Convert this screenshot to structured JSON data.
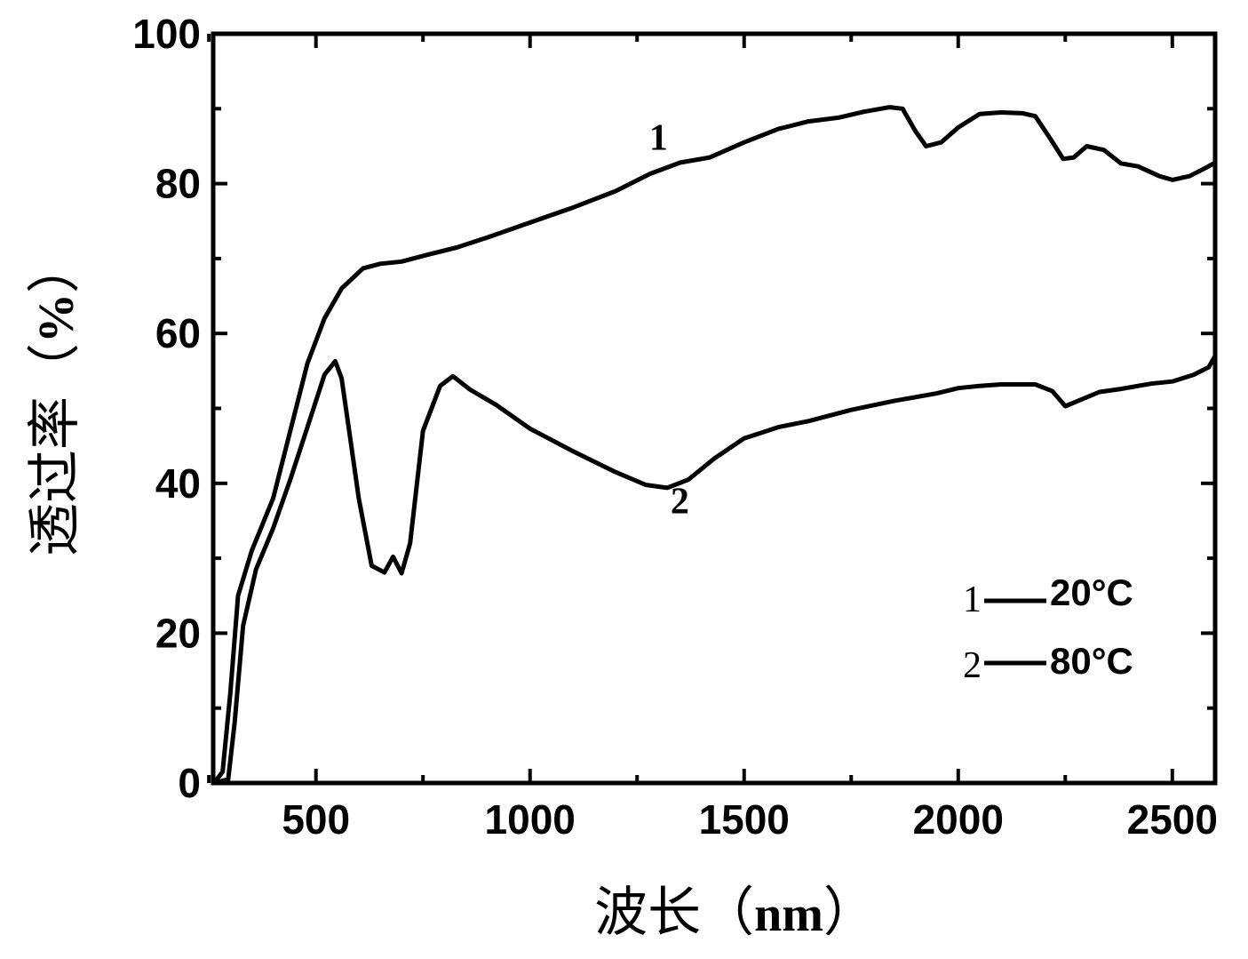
{
  "chart_data": {
    "type": "line",
    "xlabel": "波长（nm）",
    "xlabel_main": "波长（",
    "xlabel_unit": "nm",
    "xlabel_close": "）",
    "ylabel": "透过率（%）",
    "ylabel_main": "透过率（",
    "ylabel_unit": "%",
    "ylabel_close": "）",
    "xlim": [
      260,
      2600
    ],
    "ylim": [
      0,
      100
    ],
    "x_ticks": [
      "500",
      "1000",
      "1500",
      "2000",
      "2500"
    ],
    "y_ticks": [
      "0",
      "20",
      "40",
      "60",
      "80",
      "100"
    ],
    "grid": false,
    "legend_position": "bottom-right",
    "legend": [
      {
        "marker": "1",
        "label": "20°C"
      },
      {
        "marker": "2",
        "label": "80°C"
      }
    ],
    "series": [
      {
        "name": "1",
        "legend": "20°C",
        "color": "#000000",
        "points": [
          [
            262,
            0
          ],
          [
            282,
            1.5
          ],
          [
            300,
            12
          ],
          [
            318,
            25
          ],
          [
            350,
            31
          ],
          [
            400,
            38
          ],
          [
            440,
            47
          ],
          [
            480,
            56
          ],
          [
            520,
            62
          ],
          [
            560,
            66
          ],
          [
            610,
            68.7
          ],
          [
            650,
            69.3
          ],
          [
            700,
            69.6
          ],
          [
            760,
            70.5
          ],
          [
            830,
            71.5
          ],
          [
            900,
            72.8
          ],
          [
            1000,
            74.8
          ],
          [
            1100,
            76.8
          ],
          [
            1200,
            79
          ],
          [
            1280,
            81.3
          ],
          [
            1350,
            82.8
          ],
          [
            1420,
            83.5
          ],
          [
            1500,
            85.5
          ],
          [
            1580,
            87.3
          ],
          [
            1650,
            88.3
          ],
          [
            1720,
            88.8
          ],
          [
            1780,
            89.6
          ],
          [
            1840,
            90.2
          ],
          [
            1870,
            90
          ],
          [
            1900,
            87
          ],
          [
            1925,
            85
          ],
          [
            1960,
            85.5
          ],
          [
            2000,
            87.5
          ],
          [
            2050,
            89.3
          ],
          [
            2100,
            89.5
          ],
          [
            2150,
            89.4
          ],
          [
            2180,
            89
          ],
          [
            2215,
            86
          ],
          [
            2245,
            83.3
          ],
          [
            2270,
            83.5
          ],
          [
            2300,
            85
          ],
          [
            2340,
            84.5
          ],
          [
            2380,
            82.7
          ],
          [
            2420,
            82.3
          ],
          [
            2470,
            81
          ],
          [
            2500,
            80.5
          ],
          [
            2540,
            81
          ],
          [
            2575,
            82
          ],
          [
            2600,
            82.8
          ]
        ]
      },
      {
        "name": "2",
        "legend": "80°C",
        "color": "#000000",
        "points": [
          [
            262,
            0
          ],
          [
            295,
            0.5
          ],
          [
            310,
            8
          ],
          [
            330,
            21
          ],
          [
            360,
            28.5
          ],
          [
            400,
            34
          ],
          [
            440,
            40.5
          ],
          [
            480,
            47.5
          ],
          [
            520,
            54.5
          ],
          [
            545,
            56.3
          ],
          [
            560,
            54
          ],
          [
            580,
            46
          ],
          [
            600,
            38
          ],
          [
            630,
            29
          ],
          [
            660,
            28.1
          ],
          [
            680,
            30.2
          ],
          [
            700,
            28
          ],
          [
            720,
            32
          ],
          [
            750,
            47
          ],
          [
            790,
            53
          ],
          [
            820,
            54.3
          ],
          [
            860,
            52.5
          ],
          [
            920,
            50.5
          ],
          [
            1000,
            47.3
          ],
          [
            1100,
            44.3
          ],
          [
            1200,
            41.5
          ],
          [
            1270,
            39.8
          ],
          [
            1320,
            39.4
          ],
          [
            1370,
            40.5
          ],
          [
            1430,
            43.3
          ],
          [
            1500,
            46
          ],
          [
            1580,
            47.5
          ],
          [
            1650,
            48.3
          ],
          [
            1750,
            49.8
          ],
          [
            1850,
            51
          ],
          [
            1950,
            52
          ],
          [
            2000,
            52.7
          ],
          [
            2050,
            53
          ],
          [
            2100,
            53.2
          ],
          [
            2180,
            53.2
          ],
          [
            2220,
            52.3
          ],
          [
            2250,
            50.3
          ],
          [
            2280,
            51
          ],
          [
            2330,
            52.2
          ],
          [
            2380,
            52.6
          ],
          [
            2450,
            53.3
          ],
          [
            2500,
            53.6
          ],
          [
            2550,
            54.5
          ],
          [
            2585,
            55.5
          ],
          [
            2600,
            57
          ]
        ]
      }
    ],
    "annotations": [
      {
        "text": "1",
        "x": 1300,
        "y": 84.5
      },
      {
        "text": "2",
        "x": 1350,
        "y": 36
      }
    ]
  }
}
